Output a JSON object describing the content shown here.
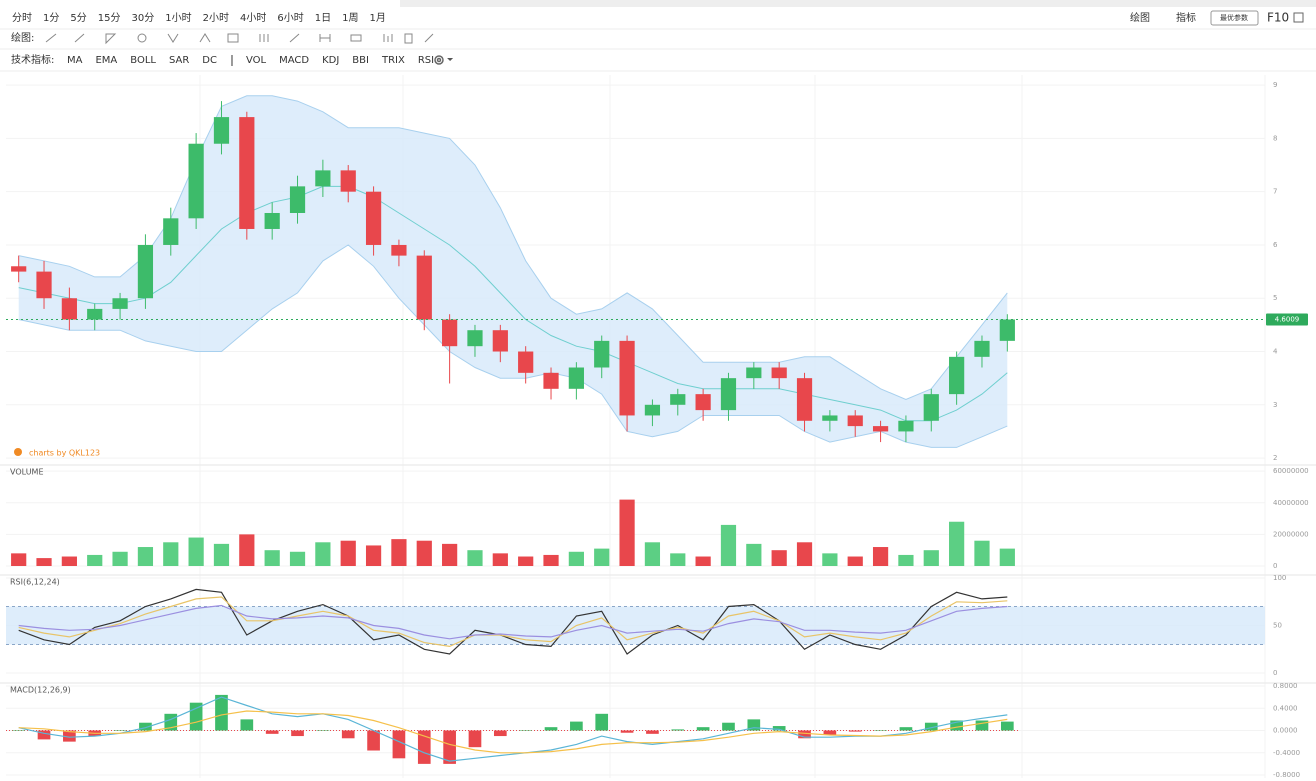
{
  "toolbar": {
    "intervals": [
      "分时",
      "1分",
      "5分",
      "15分",
      "30分",
      "1小时",
      "2小时",
      "4小时",
      "6小时",
      "1日",
      "1周",
      "1月"
    ],
    "active_interval": 9,
    "draw_label": "绘图:",
    "indicator_label": "技术指标:",
    "indicators": [
      "MA",
      "EMA",
      "BOLL",
      "SAR",
      "DC",
      "VOL",
      "MACD",
      "KDJ",
      "BBI",
      "TRIX",
      "RSI"
    ],
    "active_indicators": [
      2,
      5,
      6,
      10
    ],
    "right": {
      "draw": "绘图",
      "indicator": "指标",
      "button": "最优参数",
      "f10": "F10"
    },
    "accent_color": "#f08a24"
  },
  "watermark": "charts by QKL123",
  "chart_data": [
    {
      "type": "candlestick",
      "up_color": "#3dbb6a",
      "down_color": "#e8474c",
      "open": [
        5.6,
        5.5,
        5.0,
        4.6,
        4.8,
        5.0,
        6.0,
        6.5,
        7.9,
        8.4,
        6.3,
        6.6,
        7.1,
        7.4,
        7.0,
        6.0,
        5.8,
        4.6,
        4.1,
        4.4,
        4.0,
        3.6,
        3.3,
        3.7,
        4.2,
        2.8,
        3.0,
        3.2,
        2.9,
        3.5,
        3.7,
        3.5,
        2.7,
        2.8,
        2.6,
        2.5,
        2.7,
        3.2,
        3.9,
        4.2
      ],
      "high": [
        5.8,
        5.7,
        5.2,
        4.9,
        5.1,
        6.2,
        6.7,
        8.1,
        8.7,
        8.5,
        6.8,
        7.3,
        7.6,
        7.5,
        7.1,
        6.1,
        5.9,
        4.7,
        4.5,
        4.5,
        4.1,
        3.7,
        3.8,
        4.3,
        4.3,
        3.1,
        3.3,
        3.3,
        3.6,
        3.8,
        3.8,
        3.6,
        2.9,
        2.9,
        2.7,
        2.8,
        3.3,
        4.0,
        4.3,
        4.7
      ],
      "low": [
        5.3,
        4.8,
        4.4,
        4.4,
        4.6,
        4.8,
        5.8,
        6.3,
        7.7,
        6.1,
        6.1,
        6.4,
        6.9,
        6.8,
        5.8,
        5.6,
        4.4,
        3.4,
        3.9,
        3.8,
        3.4,
        3.1,
        3.1,
        3.5,
        2.5,
        2.6,
        2.8,
        2.7,
        2.7,
        3.3,
        3.3,
        2.5,
        2.5,
        2.4,
        2.3,
        2.3,
        2.5,
        3.0,
        3.7,
        4.0
      ],
      "close": [
        5.5,
        5.0,
        4.6,
        4.8,
        5.0,
        6.0,
        6.5,
        7.9,
        8.4,
        6.3,
        6.6,
        7.1,
        7.4,
        7.0,
        6.0,
        5.8,
        4.6,
        4.1,
        4.4,
        4.0,
        3.6,
        3.3,
        3.7,
        4.2,
        2.8,
        3.0,
        3.2,
        2.9,
        3.5,
        3.7,
        3.5,
        2.7,
        2.8,
        2.6,
        2.5,
        2.7,
        3.2,
        3.9,
        4.2,
        4.6009
      ],
      "boll_upper": [
        5.8,
        5.7,
        5.6,
        5.4,
        5.4,
        5.8,
        6.5,
        7.6,
        8.6,
        8.8,
        8.8,
        8.7,
        8.5,
        8.2,
        8.2,
        8.2,
        8.1,
        8.0,
        7.5,
        6.7,
        5.7,
        5.0,
        4.7,
        4.8,
        5.1,
        4.8,
        4.3,
        3.8,
        3.8,
        3.8,
        3.8,
        3.9,
        3.9,
        3.6,
        3.3,
        3.1,
        3.3,
        3.9,
        4.5,
        5.1
      ],
      "boll_mid": [
        5.2,
        5.1,
        5.0,
        4.9,
        4.9,
        5.0,
        5.3,
        5.8,
        6.3,
        6.6,
        6.8,
        6.9,
        7.1,
        7.1,
        6.9,
        6.6,
        6.3,
        6.0,
        5.6,
        5.1,
        4.6,
        4.3,
        4.1,
        4.0,
        3.8,
        3.6,
        3.4,
        3.3,
        3.3,
        3.3,
        3.3,
        3.2,
        3.1,
        3.0,
        2.9,
        2.7,
        2.7,
        2.9,
        3.2,
        3.6
      ],
      "boll_lower": [
        4.6,
        4.5,
        4.4,
        4.4,
        4.4,
        4.2,
        4.1,
        4.0,
        4.0,
        4.4,
        4.8,
        5.1,
        5.7,
        6.0,
        5.6,
        5.0,
        4.5,
        4.0,
        3.7,
        3.5,
        3.5,
        3.6,
        3.5,
        3.2,
        2.5,
        2.4,
        2.5,
        2.8,
        2.8,
        2.8,
        2.8,
        2.5,
        2.3,
        2.4,
        2.5,
        2.3,
        2.2,
        2.2,
        2.4,
        2.6
      ],
      "boll_fill": "#d6e9fa",
      "boll_line": "#a8d0ee",
      "boll_mid_color": "#6fcfcf",
      "last_price": {
        "value": 4.6009,
        "color": "#2eaa5c"
      },
      "ylim": [
        1.87,
        9.19
      ],
      "yticks": [
        2,
        3,
        4,
        5,
        6,
        7,
        8,
        9
      ],
      "grid": true
    },
    {
      "type": "bar",
      "title": "VOLUME",
      "up_color": "#5ccf84",
      "down_color": "#e8474c",
      "values": [
        8000000,
        5000000,
        6000000,
        7000000,
        9000000,
        12000000,
        15000000,
        18000000,
        14000000,
        20000000,
        10000000,
        9000000,
        15000000,
        16000000,
        13000000,
        17000000,
        16000000,
        14000000,
        10000000,
        8000000,
        6000000,
        7000000,
        9000000,
        11000000,
        42000000,
        15000000,
        8000000,
        6000000,
        26000000,
        14000000,
        10000000,
        15000000,
        8000000,
        6000000,
        12000000,
        7000000,
        10000000,
        28000000,
        16000000,
        11000000
      ],
      "ylim": [
        0,
        62000000
      ],
      "yticks": [
        0,
        20000000,
        40000000,
        60000000
      ],
      "grid": true
    },
    {
      "type": "line",
      "title": "RSI(6,12,24)",
      "series": [
        {
          "color": "#333333",
          "values": [
            45,
            35,
            30,
            48,
            55,
            70,
            78,
            88,
            85,
            40,
            55,
            65,
            72,
            60,
            35,
            40,
            25,
            20,
            45,
            40,
            30,
            28,
            60,
            65,
            20,
            40,
            50,
            35,
            70,
            72,
            55,
            25,
            40,
            30,
            25,
            40,
            70,
            85,
            78,
            80
          ]
        },
        {
          "color": "#e8c468",
          "values": [
            48,
            42,
            38,
            45,
            52,
            62,
            70,
            78,
            80,
            55,
            55,
            60,
            65,
            60,
            45,
            42,
            32,
            28,
            40,
            40,
            35,
            33,
            50,
            58,
            35,
            42,
            48,
            42,
            60,
            65,
            55,
            38,
            42,
            38,
            35,
            42,
            60,
            75,
            74,
            76
          ]
        },
        {
          "color": "#9b8fe0",
          "values": [
            50,
            47,
            45,
            46,
            50,
            56,
            62,
            68,
            71,
            60,
            57,
            58,
            60,
            58,
            50,
            47,
            40,
            36,
            40,
            41,
            39,
            38,
            45,
            50,
            42,
            44,
            46,
            44,
            52,
            57,
            54,
            45,
            45,
            43,
            42,
            45,
            55,
            65,
            68,
            70
          ]
        }
      ],
      "band": [
        30,
        70
      ],
      "band_color": "#d6e9fa",
      "ylim": [
        0,
        100
      ],
      "yticks": [
        0,
        50,
        100
      ],
      "grid": true
    },
    {
      "type": "macd",
      "title": "MACD(12,26,9)",
      "up_color": "#3dbb6a",
      "down_color": "#e8474c",
      "dif": {
        "color": "#5ab5d6",
        "values": [
          0.05,
          -0.05,
          -0.12,
          -0.1,
          -0.05,
          0.05,
          0.2,
          0.4,
          0.6,
          0.45,
          0.3,
          0.25,
          0.3,
          0.2,
          0.0,
          -0.2,
          -0.4,
          -0.55,
          -0.5,
          -0.45,
          -0.4,
          -0.35,
          -0.25,
          -0.1,
          -0.2,
          -0.25,
          -0.2,
          -0.15,
          -0.05,
          0.05,
          0.02,
          -0.12,
          -0.12,
          -0.1,
          -0.1,
          -0.05,
          0.05,
          0.15,
          0.22,
          0.28
        ]
      },
      "dea": {
        "color": "#f5c04a",
        "values": [
          0.05,
          0.03,
          -0.02,
          -0.05,
          -0.05,
          -0.02,
          0.05,
          0.15,
          0.28,
          0.35,
          0.33,
          0.3,
          0.3,
          0.27,
          0.18,
          0.05,
          -0.1,
          -0.25,
          -0.35,
          -0.4,
          -0.4,
          -0.38,
          -0.33,
          -0.25,
          -0.22,
          -0.22,
          -0.21,
          -0.18,
          -0.12,
          -0.05,
          -0.02,
          -0.05,
          -0.08,
          -0.09,
          -0.1,
          -0.08,
          -0.02,
          0.06,
          0.13,
          0.2
        ]
      },
      "hist": [
        0,
        -0.16,
        -0.2,
        -0.1,
        0,
        0.14,
        0.3,
        0.5,
        0.64,
        0.2,
        -0.06,
        -0.1,
        0,
        -0.14,
        -0.36,
        -0.5,
        -0.6,
        -0.6,
        -0.3,
        -0.1,
        0,
        0.06,
        0.16,
        0.3,
        -0.04,
        -0.06,
        0.02,
        0.06,
        0.14,
        0.2,
        0.08,
        -0.14,
        -0.08,
        -0.02,
        0,
        0.06,
        0.14,
        0.18,
        0.18,
        0.16
      ],
      "ylim": [
        -0.8,
        0.8
      ],
      "yticks": [
        {
          "value": -0.8,
          "label": "-0.8000"
        },
        {
          "value": -0.4,
          "label": "-0.4000"
        },
        {
          "value": 0,
          "label": "0.0000"
        },
        {
          "value": 0.4,
          "label": "0.4000"
        },
        {
          "value": 0.8,
          "label": "0.8000"
        }
      ],
      "grid": true
    }
  ]
}
